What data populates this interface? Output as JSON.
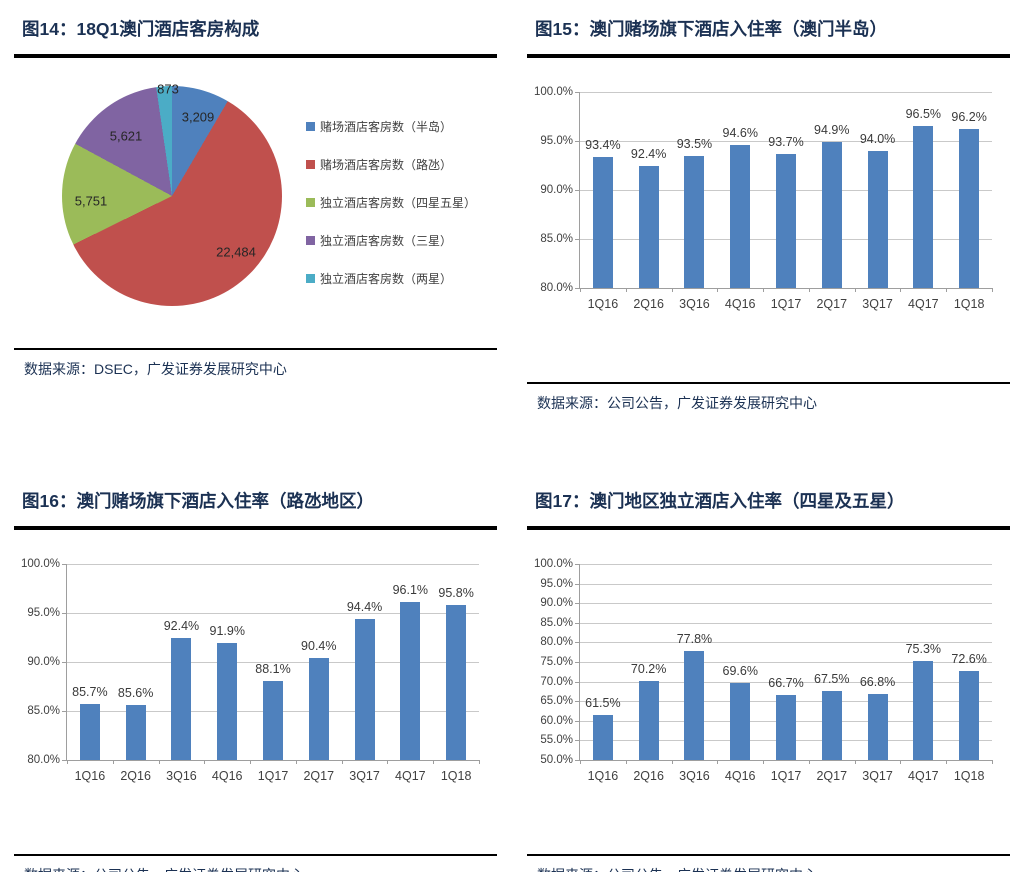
{
  "colors": {
    "title": "#1B3153",
    "rule": "#000000",
    "bar": "#4F81BD",
    "gridline": "#C9C9C9",
    "axis": "#9E9E9E"
  },
  "chart_data": [
    {
      "figure": "图14",
      "type": "pie",
      "title": "图14：18Q1澳门酒店客房构成",
      "source": "数据来源：DSEC，广发证券发展研究中心",
      "labels": [
        "赌场酒店客房数（半岛）",
        "赌场酒店客房数（路氹）",
        "独立酒店客房数（四星五星）",
        "独立酒店客房数（三星）",
        "独立酒店客房数（两星）"
      ],
      "values": [
        3209,
        22484,
        5751,
        5621,
        873
      ],
      "display_values": [
        "3,209",
        "22,484",
        "5,751",
        "5,621",
        "873"
      ],
      "slice_colors": [
        "#4F81BD",
        "#C0504D",
        "#9BBB59",
        "#8064A2",
        "#4BACC6"
      ],
      "legend_position": "right",
      "start_angle_deg": 0,
      "direction": "clockwise"
    },
    {
      "figure": "图15",
      "type": "bar",
      "title": "图15：澳门赌场旗下酒店入住率（澳门半岛）",
      "source": "数据来源：公司公告，广发证券发展研究中心",
      "categories": [
        "1Q16",
        "2Q16",
        "3Q16",
        "4Q16",
        "1Q17",
        "2Q17",
        "3Q17",
        "4Q17",
        "1Q18"
      ],
      "values": [
        93.4,
        92.4,
        93.5,
        94.6,
        93.7,
        94.9,
        94.0,
        96.5,
        96.2
      ],
      "value_labels": [
        "93.4%",
        "92.4%",
        "93.5%",
        "94.6%",
        "93.7%",
        "94.9%",
        "94.0%",
        "96.5%",
        "96.2%"
      ],
      "ylim": [
        80,
        100
      ],
      "ytick_step": 5,
      "ytick_labels": [
        "100.0%",
        "95.0%",
        "90.0%",
        "85.0%",
        "80.0%"
      ],
      "xlabel": "",
      "ylabel": "",
      "grid": true,
      "legend": false,
      "bar_color": "#4F81BD"
    },
    {
      "figure": "图16",
      "type": "bar",
      "title": "图16：澳门赌场旗下酒店入住率（路氹地区）",
      "source": "数据来源：公司公告，广发证券发展研究中心",
      "categories": [
        "1Q16",
        "2Q16",
        "3Q16",
        "4Q16",
        "1Q17",
        "2Q17",
        "3Q17",
        "4Q17",
        "1Q18"
      ],
      "values": [
        85.7,
        85.6,
        92.4,
        91.9,
        88.1,
        90.4,
        94.4,
        96.1,
        95.8
      ],
      "value_labels": [
        "85.7%",
        "85.6%",
        "92.4%",
        "91.9%",
        "88.1%",
        "90.4%",
        "94.4%",
        "96.1%",
        "95.8%"
      ],
      "ylim": [
        80,
        100
      ],
      "ytick_step": 5,
      "ytick_labels": [
        "100.0%",
        "95.0%",
        "90.0%",
        "85.0%",
        "80.0%"
      ],
      "xlabel": "",
      "ylabel": "",
      "grid": true,
      "legend": false,
      "bar_color": "#4F81BD"
    },
    {
      "figure": "图17",
      "type": "bar",
      "title": "图17：澳门地区独立酒店入住率（四星及五星）",
      "source": "数据来源：公司公告，广发证券发展研究中心",
      "categories": [
        "1Q16",
        "2Q16",
        "3Q16",
        "4Q16",
        "1Q17",
        "2Q17",
        "3Q17",
        "4Q17",
        "1Q18"
      ],
      "values": [
        61.5,
        70.2,
        77.8,
        69.6,
        66.7,
        67.5,
        66.8,
        75.3,
        72.6
      ],
      "value_labels": [
        "61.5%",
        "70.2%",
        "77.8%",
        "69.6%",
        "66.7%",
        "67.5%",
        "66.8%",
        "75.3%",
        "72.6%"
      ],
      "ylim": [
        50,
        100
      ],
      "ytick_step": 5,
      "ytick_labels": [
        "100.0%",
        "95.0%",
        "90.0%",
        "85.0%",
        "80.0%",
        "75.0%",
        "70.0%",
        "65.0%",
        "60.0%",
        "55.0%",
        "50.0%"
      ],
      "xlabel": "",
      "ylabel": "",
      "grid": true,
      "legend": false,
      "bar_color": "#4F81BD"
    }
  ]
}
